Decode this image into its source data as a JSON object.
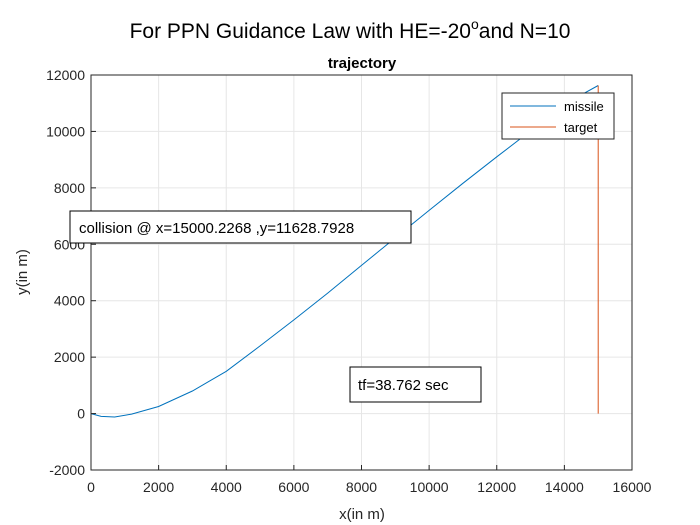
{
  "figure": {
    "suptitle_main": "For PPN Guidance Law with HE=-20",
    "suptitle_sup": "o",
    "suptitle_tail": "and N=10"
  },
  "chart_data": {
    "type": "line",
    "title": "trajectory",
    "xlabel": "x(in m)",
    "ylabel": "y(in m)",
    "xlim": [
      0,
      16000
    ],
    "ylim": [
      -2000,
      12000
    ],
    "xticks": [
      0,
      2000,
      4000,
      6000,
      8000,
      10000,
      12000,
      14000,
      16000
    ],
    "yticks": [
      -2000,
      0,
      2000,
      4000,
      6000,
      8000,
      10000,
      12000
    ],
    "grid": true,
    "legend_position": "top-right",
    "series": [
      {
        "name": "missile",
        "color": "#0072bd",
        "x": [
          0,
          300,
          700,
          1200,
          2000,
          3000,
          4000,
          5000,
          6000,
          7000,
          8000,
          9000,
          10000,
          11000,
          12000,
          13000,
          14000,
          14500,
          15000
        ],
        "y": [
          0,
          -100,
          -120,
          -20,
          250,
          800,
          1500,
          2400,
          3320,
          4270,
          5250,
          6230,
          7200,
          8160,
          9100,
          10020,
          10900,
          11300,
          11629
        ]
      },
      {
        "name": "target",
        "color": "#d95319",
        "x": [
          15000,
          15000
        ],
        "y": [
          0,
          11629
        ]
      }
    ],
    "annotations": [
      {
        "text": "collision @ x=15000.2268 ,y=11628.7928"
      },
      {
        "text": "tf=38.762 sec"
      }
    ]
  }
}
